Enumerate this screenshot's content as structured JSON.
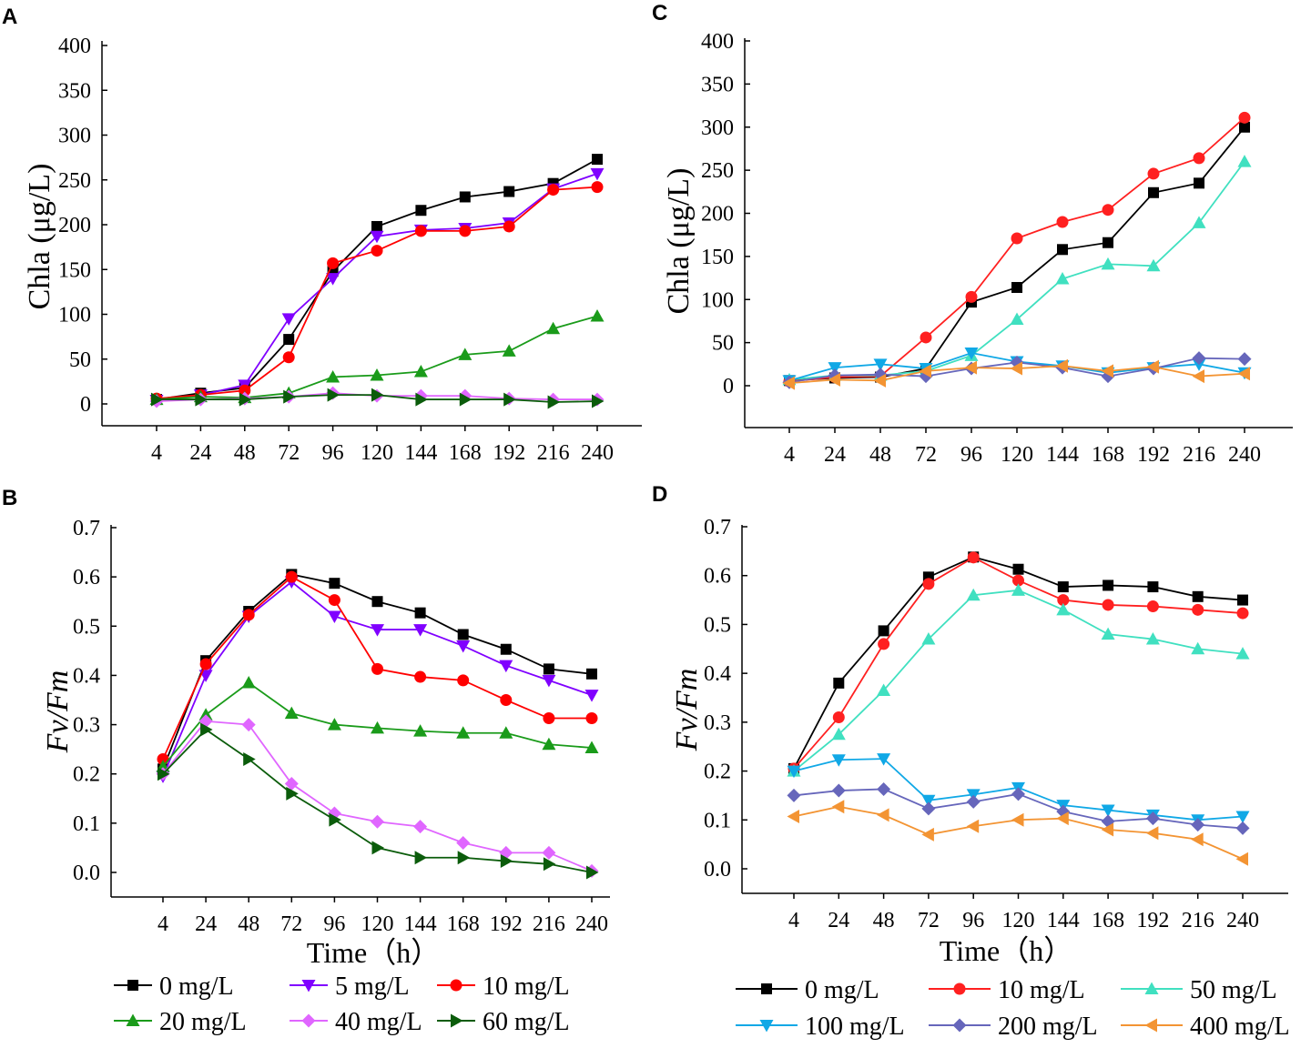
{
  "chart_data": [
    {
      "panel": "A",
      "type": "line",
      "ylabel": "Chla (μg/L)",
      "xlabel": "",
      "categories": [
        "4",
        "24",
        "48",
        "72",
        "96",
        "120",
        "144",
        "168",
        "192",
        "216",
        "240"
      ],
      "yticks": [
        0,
        50,
        100,
        150,
        200,
        250,
        300,
        350,
        400
      ],
      "ylim": [
        -24,
        420
      ],
      "series": [
        {
          "name": "0 mg/L",
          "color": "#000000",
          "marker": "square",
          "values": [
            5,
            12,
            18,
            72,
            148,
            198,
            216,
            231,
            237,
            246,
            273
          ]
        },
        {
          "name": "5 mg/L",
          "color": "#8000ff",
          "marker": "triangle-down",
          "values": [
            4,
            10,
            21,
            95,
            140,
            187,
            194,
            196,
            202,
            240,
            257
          ]
        },
        {
          "name": "10 mg/L",
          "color": "#ff0000",
          "marker": "circle",
          "values": [
            6,
            10,
            15,
            52,
            157,
            171,
            193,
            193,
            198,
            239,
            242
          ]
        },
        {
          "name": "20 mg/L",
          "color": "#1a9b1a",
          "marker": "triangle-up",
          "values": [
            5,
            8,
            7,
            12,
            30,
            32,
            36,
            55,
            59,
            84,
            98
          ]
        },
        {
          "name": "40 mg/L",
          "color": "#e066ff",
          "marker": "diamond",
          "values": [
            3,
            5,
            6,
            8,
            12,
            9,
            9,
            9,
            6,
            5,
            5
          ]
        },
        {
          "name": "60 mg/L",
          "color": "#0b5c0b",
          "marker": "triangle-right",
          "values": [
            5,
            5,
            5,
            8,
            10,
            10,
            5,
            5,
            5,
            2,
            3
          ]
        }
      ]
    },
    {
      "panel": "B",
      "type": "line",
      "ylabel": "Fv/Fm",
      "xlabel": "Time（h）",
      "categories": [
        "4",
        "24",
        "48",
        "72",
        "96",
        "120",
        "144",
        "168",
        "192",
        "216",
        "240"
      ],
      "yticks": [
        "0.0",
        "0.1",
        "0.2",
        "0.3",
        "0.4",
        "0.5",
        "0.6",
        "0.7"
      ],
      "ylim": [
        -0.05,
        0.7
      ],
      "series": [
        {
          "name": "0 mg/L",
          "color": "#000000",
          "marker": "square",
          "values": [
            0.21,
            0.43,
            0.53,
            0.605,
            0.587,
            0.55,
            0.527,
            0.483,
            0.453,
            0.413,
            0.403
          ]
        },
        {
          "name": "5 mg/L",
          "color": "#8000ff",
          "marker": "triangle-down",
          "values": [
            0.195,
            0.4,
            0.52,
            0.59,
            0.52,
            0.493,
            0.493,
            0.46,
            0.42,
            0.39,
            0.36
          ]
        },
        {
          "name": "10 mg/L",
          "color": "#ff0000",
          "marker": "circle",
          "values": [
            0.23,
            0.423,
            0.523,
            0.6,
            0.553,
            0.413,
            0.397,
            0.39,
            0.35,
            0.313,
            0.313
          ]
        },
        {
          "name": "20 mg/L",
          "color": "#1a9b1a",
          "marker": "triangle-up",
          "values": [
            0.215,
            0.32,
            0.385,
            0.323,
            0.3,
            0.293,
            0.287,
            0.283,
            0.283,
            0.26,
            0.253
          ]
        },
        {
          "name": "40 mg/L",
          "color": "#e066ff",
          "marker": "diamond",
          "values": [
            0.2,
            0.307,
            0.3,
            0.18,
            0.12,
            0.103,
            0.093,
            0.06,
            0.04,
            0.04,
            0.003
          ]
        },
        {
          "name": "60 mg/L",
          "color": "#0b5c0b",
          "marker": "triangle-right",
          "values": [
            0.2,
            0.29,
            0.23,
            0.16,
            0.107,
            0.05,
            0.03,
            0.03,
            0.023,
            0.017,
            0.0
          ]
        }
      ]
    },
    {
      "panel": "C",
      "type": "line",
      "ylabel": "Chla (μg/L)",
      "xlabel": "",
      "categories": [
        "4",
        "24",
        "48",
        "72",
        "96",
        "120",
        "144",
        "168",
        "192",
        "216",
        "240"
      ],
      "yticks": [
        0,
        50,
        100,
        150,
        200,
        250,
        300,
        350,
        400
      ],
      "ylim": [
        -48,
        400
      ],
      "series": [
        {
          "name": "0 mg/L",
          "color": "#000000",
          "marker": "square",
          "values": [
            6,
            9,
            10,
            20,
            97,
            114,
            158,
            166,
            224,
            235,
            300
          ]
        },
        {
          "name": "10 mg/L",
          "color": "#ff2020",
          "marker": "circle",
          "values": [
            5,
            10,
            11,
            56,
            103,
            171,
            190,
            204,
            246,
            264,
            311
          ]
        },
        {
          "name": "50 mg/L",
          "color": "#40e0c0",
          "marker": "triangle-up",
          "values": [
            7,
            12,
            12,
            17,
            35,
            77,
            124,
            141,
            139,
            189,
            260
          ]
        },
        {
          "name": "100 mg/L",
          "color": "#10a8e6",
          "marker": "triangle-down",
          "values": [
            6,
            21,
            25,
            20,
            38,
            28,
            23,
            15,
            21,
            25,
            15
          ]
        },
        {
          "name": "200 mg/L",
          "color": "#6666bb",
          "marker": "diamond",
          "values": [
            4,
            12,
            13,
            11,
            20,
            27,
            21,
            11,
            20,
            32,
            31
          ]
        },
        {
          "name": "400 mg/L",
          "color": "#f39433",
          "marker": "triangle-left",
          "values": [
            3,
            7,
            6,
            17,
            21,
            20,
            23,
            17,
            22,
            11,
            14
          ]
        }
      ]
    },
    {
      "panel": "D",
      "type": "line",
      "ylabel": "Fv/Fm",
      "xlabel": "Time（h）",
      "categories": [
        "4",
        "24",
        "48",
        "72",
        "96",
        "120",
        "144",
        "168",
        "192",
        "216",
        "240"
      ],
      "yticks": [
        "0.0",
        "0.1",
        "0.2",
        "0.3",
        "0.4",
        "0.5",
        "0.6",
        "0.7"
      ],
      "ylim": [
        -0.05,
        0.7
      ],
      "series": [
        {
          "name": "0 mg/L",
          "color": "#000000",
          "marker": "square",
          "values": [
            0.205,
            0.38,
            0.487,
            0.597,
            0.638,
            0.613,
            0.577,
            0.58,
            0.577,
            0.557,
            0.55
          ]
        },
        {
          "name": "10 mg/L",
          "color": "#ff2020",
          "marker": "circle",
          "values": [
            0.205,
            0.31,
            0.46,
            0.583,
            0.637,
            0.59,
            0.55,
            0.54,
            0.537,
            0.53,
            0.523
          ]
        },
        {
          "name": "50 mg/L",
          "color": "#40e0c0",
          "marker": "triangle-up",
          "values": [
            0.2,
            0.275,
            0.365,
            0.47,
            0.56,
            0.57,
            0.53,
            0.48,
            0.47,
            0.45,
            0.44
          ]
        },
        {
          "name": "100 mg/L",
          "color": "#10a8e6",
          "marker": "triangle-down",
          "values": [
            0.2,
            0.223,
            0.225,
            0.14,
            0.152,
            0.166,
            0.13,
            0.12,
            0.11,
            0.1,
            0.107
          ]
        },
        {
          "name": "200 mg/L",
          "color": "#6666bb",
          "marker": "diamond",
          "values": [
            0.15,
            0.16,
            0.163,
            0.123,
            0.137,
            0.153,
            0.117,
            0.097,
            0.103,
            0.09,
            0.083
          ]
        },
        {
          "name": "400 mg/L",
          "color": "#f39433",
          "marker": "triangle-left",
          "values": [
            0.107,
            0.127,
            0.11,
            0.07,
            0.087,
            0.1,
            0.103,
            0.08,
            0.073,
            0.06,
            0.02
          ]
        }
      ]
    }
  ]
}
